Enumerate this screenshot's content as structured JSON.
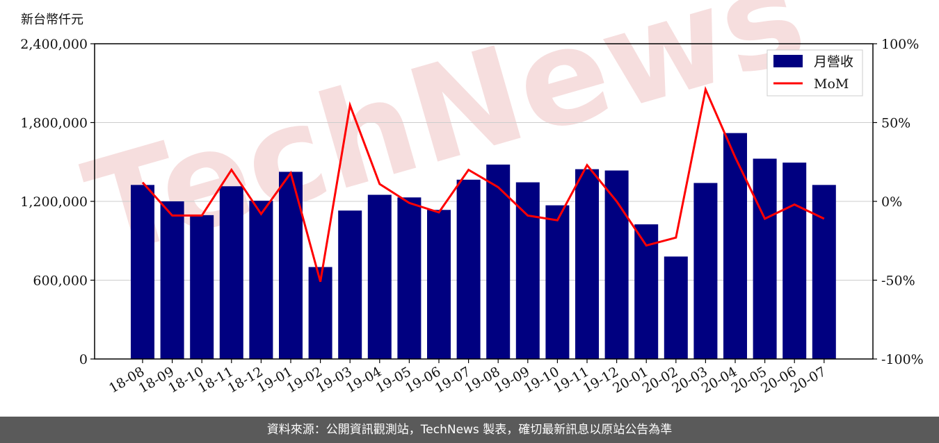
{
  "unit_label": "新台幣仟元",
  "watermark_text": "TechNews",
  "footer_text": "資料來源：公開資訊觀測站，TechNews 製表，確切最新訊息以原站公告為準",
  "colors": {
    "bar": "#000080",
    "line": "#ff0000",
    "grid": "#cccccc",
    "footer_bg": "#5a5a5a",
    "watermark": "#f6dede"
  },
  "chart_data": {
    "type": "bar",
    "categories": [
      "18-08",
      "18-09",
      "18-10",
      "18-11",
      "18-12",
      "19-01",
      "19-02",
      "19-03",
      "19-04",
      "19-05",
      "19-06",
      "19-07",
      "19-08",
      "19-09",
      "19-10",
      "19-11",
      "19-12",
      "20-01",
      "20-02",
      "20-03",
      "20-04",
      "20-05",
      "20-06",
      "20-07"
    ],
    "series": [
      {
        "name": "月營收",
        "type": "bar",
        "axis": "left",
        "values": [
          1325000,
          1200000,
          1095000,
          1315000,
          1205000,
          1425000,
          700000,
          1130000,
          1250000,
          1230000,
          1135000,
          1365000,
          1480000,
          1345000,
          1170000,
          1445000,
          1435000,
          1025000,
          780000,
          1340000,
          1720000,
          1525000,
          1495000,
          1325000
        ]
      },
      {
        "name": "MoM",
        "type": "line",
        "axis": "right",
        "values": [
          12,
          -9,
          -9,
          20,
          -8,
          18,
          -51,
          61,
          11,
          -1,
          -7,
          20,
          9,
          -9,
          -12,
          23,
          0,
          -28,
          -23,
          71,
          28,
          -11,
          -2,
          -11
        ]
      }
    ],
    "ylim_left": [
      0,
      2400000
    ],
    "yticks_left": [
      "0",
      "600,000",
      "1,200,000",
      "1,800,000",
      "2,400,000"
    ],
    "ylim_right": [
      -100,
      100
    ],
    "yticks_right": [
      "-100%",
      "-50%",
      "0%",
      "50%",
      "100%"
    ],
    "grid": true,
    "legend": "top-right"
  }
}
